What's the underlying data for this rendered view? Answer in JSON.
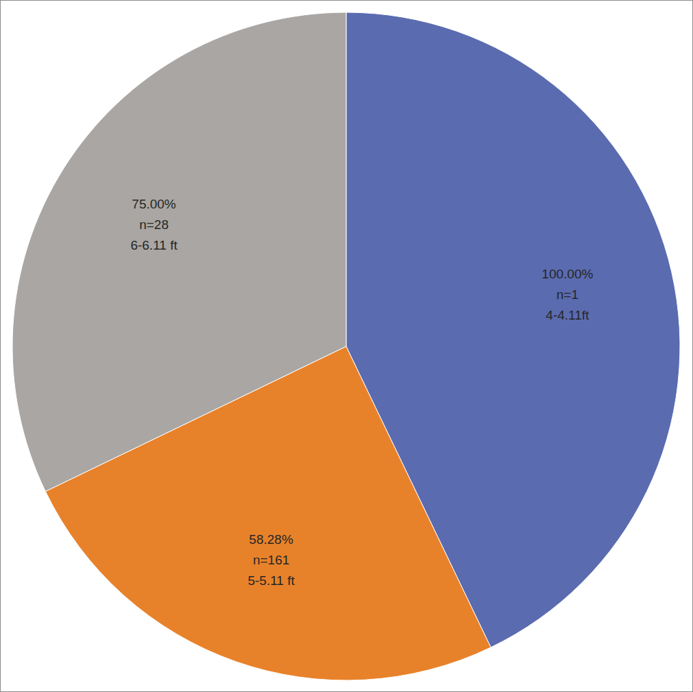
{
  "chart_data": {
    "type": "pie",
    "categories": [
      "4-4.11ft",
      "5-5.11 ft",
      "6-6.11 ft"
    ],
    "values": [
      100,
      58.28,
      75
    ],
    "value_labels": [
      "100.00%",
      "58.28%",
      "75.00%"
    ],
    "count_labels": [
      "n=1",
      "n=161",
      "n=28"
    ],
    "colors": [
      "#5a6bb0",
      "#e8822a",
      "#a9a6a3"
    ],
    "data_labels": true
  }
}
